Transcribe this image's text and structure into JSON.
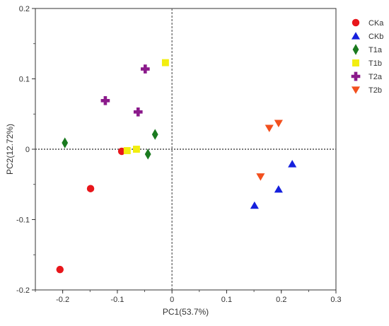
{
  "chart_data": {
    "type": "scatter",
    "title": "",
    "xlabel": "PC1(53.7%)",
    "ylabel": "PC2(12.72%)",
    "xlim": [
      -0.25,
      0.3
    ],
    "ylim": [
      -0.2,
      0.2
    ],
    "x_ticks": [
      -0.2,
      -0.1,
      0,
      0.1,
      0.2,
      0.3
    ],
    "x_tick_labels": [
      "-0.2",
      "-0.1",
      "0",
      "0.1",
      "0.2",
      "0.3"
    ],
    "y_ticks": [
      -0.2,
      -0.1,
      0,
      0.1,
      0.2
    ],
    "y_tick_labels": [
      "-0.2",
      "-0.1",
      "0",
      "0.1",
      "0.2"
    ],
    "grid": false,
    "reference_lines": {
      "x": 0,
      "y": 0,
      "style": "dotted"
    },
    "legend_position": "right",
    "series": [
      {
        "name": "CKa",
        "marker": "circle",
        "color": "#e8161b",
        "points": [
          [
            -0.205,
            -0.171
          ],
          [
            -0.149,
            -0.056
          ],
          [
            -0.092,
            -0.003
          ]
        ]
      },
      {
        "name": "CKb",
        "marker": "triangle-up",
        "color": "#1520dd",
        "points": [
          [
            0.151,
            -0.08
          ],
          [
            0.195,
            -0.057
          ],
          [
            0.22,
            -0.021
          ]
        ]
      },
      {
        "name": "T1a",
        "marker": "diamond",
        "color": "#1a7a1f",
        "points": [
          [
            -0.196,
            0.009
          ],
          [
            -0.044,
            -0.007
          ],
          [
            -0.031,
            0.021
          ]
        ]
      },
      {
        "name": "T1b",
        "marker": "square",
        "color": "#f2ee0f",
        "points": [
          [
            -0.082,
            -0.002
          ],
          [
            -0.065,
            0.0
          ],
          [
            -0.012,
            0.123
          ]
        ]
      },
      {
        "name": "T2a",
        "marker": "plus",
        "color": "#8b1a8b",
        "points": [
          [
            -0.122,
            0.069
          ],
          [
            -0.062,
            0.053
          ],
          [
            -0.049,
            0.114
          ]
        ]
      },
      {
        "name": "T2b",
        "marker": "triangle-down",
        "color": "#f2501e",
        "points": [
          [
            0.162,
            -0.039
          ],
          [
            0.178,
            0.03
          ],
          [
            0.195,
            0.037
          ]
        ]
      }
    ]
  }
}
